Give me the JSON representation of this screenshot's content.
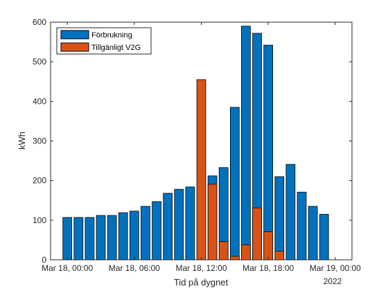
{
  "chart_data": {
    "type": "bar",
    "categories": [
      "00:00",
      "01:00",
      "02:00",
      "03:00",
      "04:00",
      "05:00",
      "06:00",
      "07:00",
      "08:00",
      "09:00",
      "10:00",
      "11:00",
      "12:00",
      "13:00",
      "14:00",
      "15:00",
      "16:00",
      "17:00",
      "18:00",
      "19:00",
      "20:00",
      "21:00",
      "22:00",
      "23:00"
    ],
    "series": [
      {
        "name": "Förbrukning",
        "color": "#0072BD",
        "values": [
          107,
          107,
          107,
          112,
          112,
          119,
          123,
          135,
          147,
          168,
          178,
          184,
          null,
          212,
          233,
          385,
          590,
          572,
          542,
          210,
          241,
          171,
          135,
          115
        ]
      },
      {
        "name": "Tillgänligt V2G",
        "color": "#D95319",
        "values": [
          null,
          null,
          null,
          null,
          null,
          null,
          null,
          null,
          null,
          null,
          null,
          null,
          455,
          191,
          46,
          9,
          38,
          131,
          71,
          22,
          null,
          null,
          null,
          null
        ]
      }
    ],
    "xlabel": "Tid på dygnet",
    "ylabel": "kWh",
    "ylim": [
      0,
      600
    ],
    "yticks": [
      "0",
      "100",
      "200",
      "300",
      "400",
      "500",
      "600"
    ],
    "xtick_labels": [
      "Mar 18, 00:00",
      "Mar 18, 06:00",
      "Mar 18, 12:00",
      "Mar 18, 18:00",
      "Mar 19, 00:00"
    ],
    "xtick_hours": [
      0,
      6,
      12,
      18,
      24
    ],
    "x_secondary_label": "2022",
    "legend_position": "top-left",
    "grid": false
  }
}
